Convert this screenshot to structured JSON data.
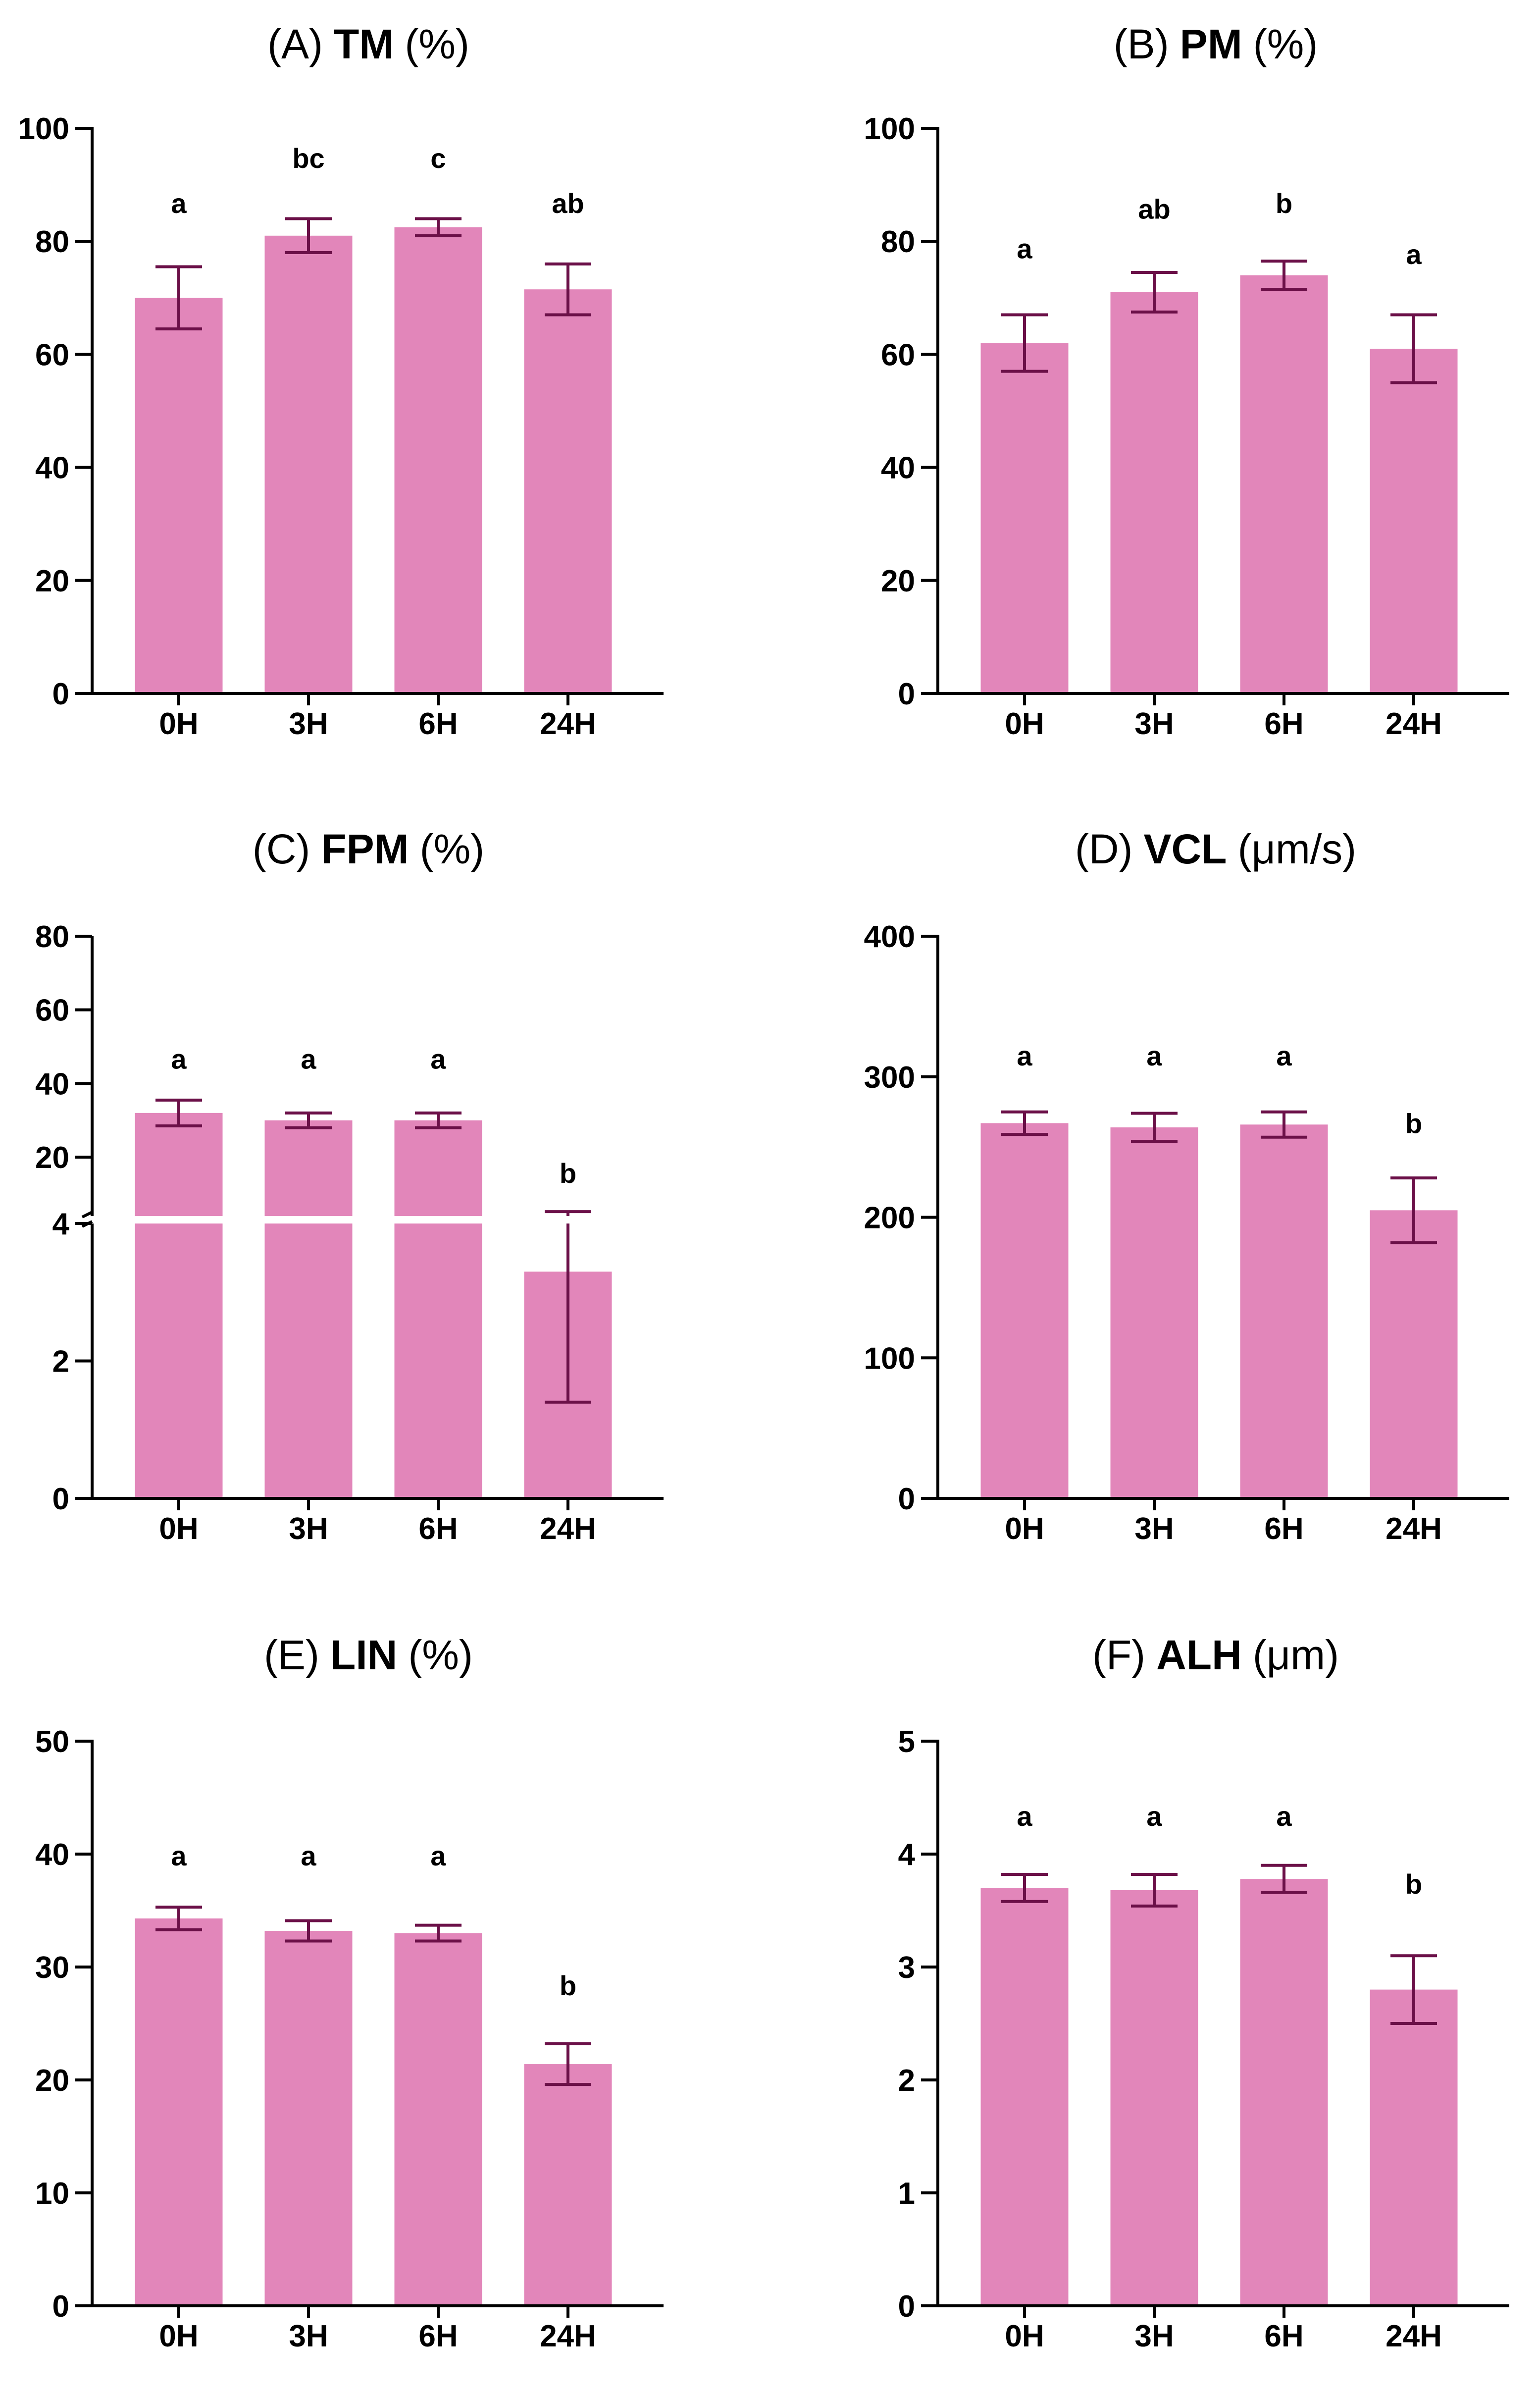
{
  "figure": {
    "bar_color": "#E286BA",
    "error_color": "#6B1048",
    "axis_color": "#000000"
  },
  "chart_data": [
    {
      "type": "bar",
      "panel": "A",
      "title_prefix": "(A)",
      "title_main": "TM",
      "title_unit": "(%)",
      "categories": [
        "0H",
        "3H",
        "6H",
        "24H"
      ],
      "values": [
        70,
        81,
        82.5,
        71.5
      ],
      "errors": [
        5.5,
        3,
        1.5,
        4.5
      ],
      "significance": [
        "a",
        "bc",
        "c",
        "ab"
      ],
      "sig_y": [
        85,
        93,
        93,
        85
      ],
      "ylim": [
        0,
        100
      ],
      "yticks": [
        0,
        20,
        40,
        60,
        80,
        100
      ],
      "xlabel": "",
      "ylabel": "",
      "grid": false,
      "legend": "none"
    },
    {
      "type": "bar",
      "panel": "B",
      "title_prefix": "(B)",
      "title_main": "PM",
      "title_unit": "(%)",
      "categories": [
        "0H",
        "3H",
        "6H",
        "24H"
      ],
      "values": [
        62,
        71,
        74,
        61
      ],
      "errors": [
        5,
        3.5,
        2.5,
        6
      ],
      "significance": [
        "a",
        "ab",
        "b",
        "a"
      ],
      "sig_y": [
        77,
        84,
        85,
        76
      ],
      "ylim": [
        0,
        100
      ],
      "yticks": [
        0,
        20,
        40,
        60,
        80,
        100
      ],
      "xlabel": "",
      "ylabel": "",
      "grid": false,
      "legend": "none"
    },
    {
      "type": "bar",
      "panel": "C",
      "title_prefix": "(C)",
      "title_main": "FPM",
      "title_unit": "(%)",
      "categories": [
        "0H",
        "3H",
        "6H",
        "24H"
      ],
      "values": [
        32,
        30,
        30,
        3.3
      ],
      "errors": [
        3.5,
        2,
        2,
        1.9
      ],
      "significance": [
        "a",
        "a",
        "a",
        "b"
      ],
      "sig_y": [
        44,
        44,
        44,
        13
      ],
      "broken_axis": true,
      "lower_range": [
        0,
        4
      ],
      "upper_range": [
        4,
        80
      ],
      "lower_ticks": [
        0,
        2,
        4
      ],
      "upper_ticks": [
        20,
        40,
        60,
        80
      ],
      "xlabel": "",
      "ylabel": "",
      "grid": false,
      "legend": "none"
    },
    {
      "type": "bar",
      "panel": "D",
      "title_prefix": "(D)",
      "title_main": "VCL",
      "title_unit": "(μm/s)",
      "categories": [
        "0H",
        "3H",
        "6H",
        "24H"
      ],
      "values": [
        267,
        264,
        266,
        205
      ],
      "errors": [
        8,
        10,
        9,
        23
      ],
      "significance": [
        "a",
        "a",
        "a",
        "b"
      ],
      "sig_y": [
        308,
        308,
        308,
        260
      ],
      "ylim": [
        0,
        400
      ],
      "yticks": [
        0,
        100,
        200,
        300,
        400
      ],
      "xlabel": "",
      "ylabel": "",
      "grid": false,
      "legend": "none"
    },
    {
      "type": "bar",
      "panel": "E",
      "title_prefix": "(E)",
      "title_main": "LIN",
      "title_unit": "(%)",
      "categories": [
        "0H",
        "3H",
        "6H",
        "24H"
      ],
      "values": [
        34.3,
        33.2,
        33,
        21.4
      ],
      "errors": [
        1,
        0.9,
        0.7,
        1.8
      ],
      "significance": [
        "a",
        "a",
        "a",
        "b"
      ],
      "sig_y": [
        39,
        39,
        39,
        27.5
      ],
      "ylim": [
        0,
        50
      ],
      "yticks": [
        0,
        10,
        20,
        30,
        40,
        50
      ],
      "xlabel": "",
      "ylabel": "",
      "grid": false,
      "legend": "none"
    },
    {
      "type": "bar",
      "panel": "F",
      "title_prefix": "(F)",
      "title_main": "ALH",
      "title_unit": "(μm)",
      "categories": [
        "0H",
        "3H",
        "6H",
        "24H"
      ],
      "values": [
        3.7,
        3.68,
        3.78,
        2.8
      ],
      "errors": [
        0.12,
        0.14,
        0.12,
        0.3
      ],
      "significance": [
        "a",
        "a",
        "a",
        "b"
      ],
      "sig_y": [
        4.25,
        4.25,
        4.25,
        3.65
      ],
      "ylim": [
        0,
        5
      ],
      "yticks": [
        0,
        1,
        2,
        3,
        4,
        5
      ],
      "xlabel": "",
      "ylabel": "",
      "grid": false,
      "legend": "none"
    }
  ]
}
